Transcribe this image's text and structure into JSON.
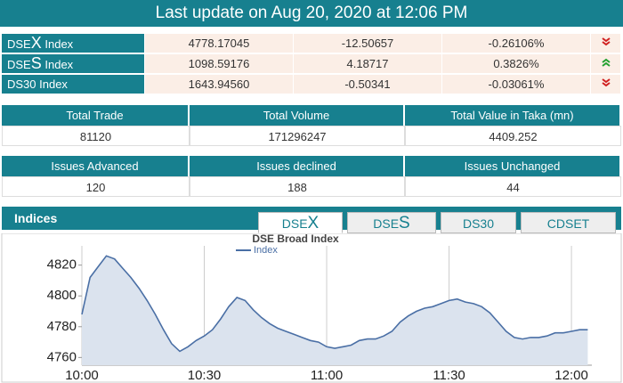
{
  "header": {
    "title": "Last update on Aug 20, 2020 at 12:06 PM"
  },
  "indices": [
    {
      "name": [
        "DSE",
        "X",
        "Index"
      ],
      "value": "4778.17045",
      "change": "-12.50657",
      "percent": "-0.26106%"
    },
    {
      "name": [
        "DSE",
        "S",
        "Index"
      ],
      "value": "1098.59176",
      "change": "4.18717",
      "percent": "0.3826%"
    },
    {
      "name": [
        "DS30 Index"
      ],
      "value": "1643.94560",
      "change": "-0.50341",
      "percent": "-0.03061%"
    }
  ],
  "totals": {
    "headers": [
      "Total Trade",
      "Total Volume",
      "Total Value in Taka (mn)"
    ],
    "values": [
      "81120",
      "171296247",
      "4409.252"
    ]
  },
  "issues": {
    "headers": [
      "Issues Advanced",
      "Issues declined",
      "Issues Unchanged"
    ],
    "values": [
      "120",
      "188",
      "44"
    ]
  },
  "indices_panel": {
    "title": "Indices",
    "tabs": [
      [
        "DSE",
        "X"
      ],
      [
        "DSE",
        "S"
      ],
      [
        "DS30"
      ],
      [
        "CDSET"
      ]
    ]
  },
  "chart": {
    "type": "line",
    "title": "DSE Broad Index",
    "x": [
      "10:00",
      "10:02",
      "10:04",
      "10:06",
      "10:08",
      "10:10",
      "10:12",
      "10:14",
      "10:16",
      "10:18",
      "10:20",
      "10:22",
      "10:24",
      "10:26",
      "10:28",
      "10:30",
      "10:32",
      "10:34",
      "10:36",
      "10:38",
      "10:40",
      "10:42",
      "10:44",
      "10:46",
      "10:48",
      "10:50",
      "10:52",
      "10:54",
      "10:56",
      "10:58",
      "11:00",
      "11:02",
      "11:04",
      "11:06",
      "11:08",
      "11:10",
      "11:12",
      "11:14",
      "11:16",
      "11:18",
      "11:20",
      "11:22",
      "11:24",
      "11:26",
      "11:28",
      "11:30",
      "11:32",
      "11:34",
      "11:36",
      "11:38",
      "11:40",
      "11:42",
      "11:44",
      "11:46",
      "11:48",
      "11:50",
      "11:52",
      "11:54",
      "11:56",
      "11:58",
      "12:00",
      "12:02",
      "12:04"
    ],
    "series": [
      {
        "name": "Index",
        "color": "#4a6fa5",
        "values": [
          4788,
          4812,
          4819,
          4826,
          4824,
          4818,
          4812,
          4805,
          4797,
          4788,
          4778,
          4769,
          4764,
          4767,
          4771,
          4774,
          4778,
          4785,
          4793,
          4799,
          4797,
          4791,
          4786,
          4782,
          4779,
          4777,
          4775,
          4773,
          4771,
          4770,
          4767,
          4766,
          4767,
          4768,
          4771,
          4772,
          4772,
          4774,
          4777,
          4783,
          4787,
          4790,
          4792,
          4793,
          4795,
          4797,
          4798,
          4796,
          4795,
          4793,
          4789,
          4783,
          4777,
          4773,
          4772,
          4773,
          4773,
          4774,
          4776,
          4776,
          4777,
          4778,
          4778
        ]
      }
    ],
    "xlim": [
      "10:00",
      "12:05"
    ],
    "xticks": [
      "10:00",
      "10:30",
      "11:00",
      "11:30",
      "12:00"
    ],
    "ylim": [
      4755,
      4836
    ],
    "yticks": [
      4760,
      4780,
      4800,
      4820
    ],
    "grid": "x"
  }
}
